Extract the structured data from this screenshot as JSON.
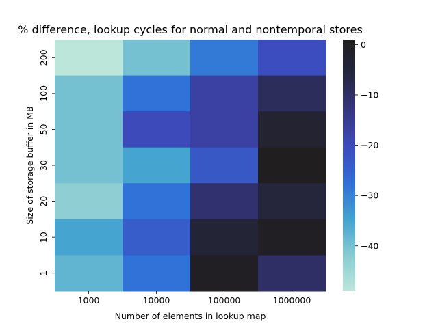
{
  "chart_data": {
    "type": "heatmap",
    "title": "% difference, lookup cycles for normal and nontemporal stores",
    "xlabel": "Number of elements in lookup map",
    "ylabel": "Size of storage buffer in MB",
    "x_categories": [
      "1000",
      "10000",
      "100000",
      "1000000"
    ],
    "y_categories": [
      "200",
      "100",
      "50",
      "30",
      "20",
      "10",
      "1"
    ],
    "values": [
      [
        -49,
        -40,
        -29,
        -21
      ],
      [
        -40,
        -28,
        -17,
        -9
      ],
      [
        -40,
        -20,
        -17,
        -3
      ],
      [
        -40,
        -35,
        -23,
        1
      ],
      [
        -43,
        -28,
        -11,
        -5
      ],
      [
        -35,
        -24,
        -4,
        0
      ],
      [
        -38,
        -28,
        0,
        -10
      ]
    ],
    "colorbar": {
      "vmin": -49,
      "vmax": 1,
      "ticks": [
        0,
        -10,
        -20,
        -30,
        -40
      ],
      "tick_labels": [
        "0",
        "−10",
        "−20",
        "−30",
        "−40"
      ],
      "colormap": "icefire-lower-half",
      "colors": [
        "#bce6da",
        "#87cbd2",
        "#43a3d0",
        "#2f6fd7",
        "#3d4bbd",
        "#373684",
        "#262741",
        "#201e1e"
      ]
    }
  }
}
